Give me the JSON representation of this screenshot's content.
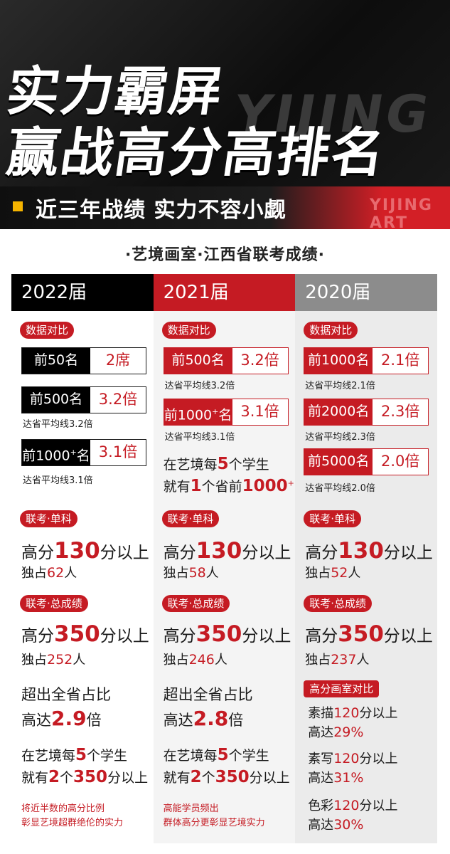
{
  "hero": {
    "watermark": "YIJING",
    "title_line1": "实力霸屏",
    "title_line2": "赢战高分高排名",
    "band_text": "近三年战绩 实力不容小觑",
    "band_watermark": "YIJING ART",
    "accent_color": "#c51b23",
    "marker_color": "#f5b400"
  },
  "subtitle": "·艺境画室·江西省联考成绩·",
  "columns": [
    {
      "year": "2022届",
      "tag_compare": "数据对比",
      "boxes": [
        {
          "label": "前50名",
          "value": "2席"
        },
        {
          "label": "前500名",
          "value": "3.2倍",
          "note": "达省平均线3.2倍"
        },
        {
          "label_pre": "前1000",
          "label_sup": "+",
          "label_post": "名",
          "value": "3.1倍",
          "note": "达省平均线3.1倍"
        }
      ],
      "tag_single": "联考·单科",
      "single_pre": "高分",
      "single_num": "130",
      "single_post": "分以上",
      "single_sub_pre": "独占",
      "single_sub_num": "62",
      "single_sub_post": "人",
      "tag_total": "联考·总成绩",
      "total_pre": "高分",
      "total_num": "350",
      "total_post": "分以上",
      "total_sub_pre": "独占",
      "total_sub_num": "252",
      "total_sub_post": "人",
      "ratio_line1": "超出全省占比",
      "ratio_pre": "高达",
      "ratio_num": "2.9",
      "ratio_post": "倍",
      "every_pre": "在艺境每",
      "every_num": "5",
      "every_post": "个学生",
      "have_pre": "就有",
      "have_num": "2",
      "have_mid": "个",
      "have_num2": "350",
      "have_post": "分以上",
      "footer_line1": "将近半数的高分比例",
      "footer_line2": "彰显艺境超群绝伦的实力"
    },
    {
      "year": "2021届",
      "tag_compare": "数据对比",
      "boxes": [
        {
          "label": "前500名",
          "value": "3.2倍",
          "note": "达省平均线3.2倍"
        },
        {
          "label_pre": "前1000",
          "label_sup": "+",
          "label_post": "名",
          "value": "3.1倍",
          "note": "达省平均线3.1倍"
        }
      ],
      "every_pre": "在艺境每",
      "every_num": "5",
      "every_post": "个学生",
      "have_pre": "就有",
      "have_num": "1",
      "have_mid": "个省前",
      "have_num2": "1000",
      "have_sup": "+",
      "tag_single": "联考·单科",
      "single_pre": "高分",
      "single_num": "130",
      "single_post": "分以上",
      "single_sub_pre": "独占",
      "single_sub_num": "58",
      "single_sub_post": "人",
      "tag_total": "联考·总成绩",
      "total_pre": "高分",
      "total_num": "350",
      "total_post": "分以上",
      "total_sub_pre": "独占",
      "total_sub_num": "246",
      "total_sub_post": "人",
      "ratio_line1": "超出全省占比",
      "ratio_pre": "高达",
      "ratio_num": "2.8",
      "ratio_post": "倍",
      "every2_pre": "在艺境每",
      "every2_num": "5",
      "every2_post": "个学生",
      "have2_pre": "就有",
      "have2_num": "2",
      "have2_mid": "个",
      "have2_num2": "350",
      "have2_post": "分以上",
      "footer_line1": "高能学员频出",
      "footer_line2": "群体高分更彰显艺境实力"
    },
    {
      "year": "2020届",
      "tag_compare": "数据对比",
      "boxes": [
        {
          "label": "前1000名",
          "value": "2.1倍",
          "note": "达省平均线2.1倍"
        },
        {
          "label": "前2000名",
          "value": "2.3倍",
          "note": "达省平均线2.3倍"
        },
        {
          "label": "前5000名",
          "value": "2.0倍",
          "note": "达省平均线2.0倍"
        }
      ],
      "tag_single": "联考·单科",
      "single_pre": "高分",
      "single_num": "130",
      "single_post": "分以上",
      "single_sub_pre": "独占",
      "single_sub_num": "52",
      "single_sub_post": "人",
      "tag_total": "联考·总成绩",
      "total_pre": "高分",
      "total_num": "350",
      "total_post": "分以上",
      "total_sub_pre": "独占",
      "total_sub_num": "237",
      "total_sub_post": "人",
      "tag_studio": "高分画室对比",
      "subjects": [
        {
          "pre": "素描",
          "num": "120",
          "post": "分以上",
          "ratio_pre": "高达",
          "ratio": "29%"
        },
        {
          "pre": "素写",
          "num": "120",
          "post": "分以上",
          "ratio_pre": "高达",
          "ratio": "31%"
        },
        {
          "pre": "色彩",
          "num": "120",
          "post": "分以上",
          "ratio_pre": "高达",
          "ratio": "30%"
        }
      ]
    }
  ]
}
